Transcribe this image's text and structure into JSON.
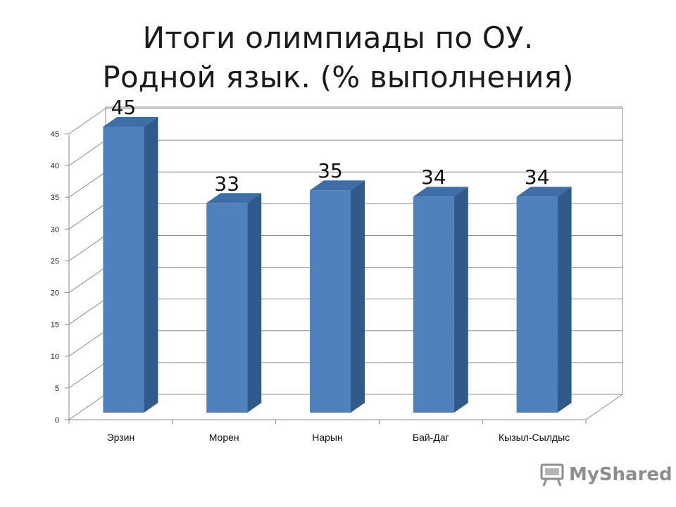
{
  "title": {
    "line1": "Итоги олимпиады по ОУ.",
    "line2": "Родной язык. (% выполнения)"
  },
  "watermark": {
    "text": "MyShared",
    "icon": "presentation-board-icon"
  },
  "colors": {
    "bar_front": "#4F81BD",
    "bar_side": "#2F5A8A",
    "bar_top": "#3E6DA8",
    "grid": "#8c8c8c",
    "watermark": "#8e8e8e"
  },
  "chart_data": {
    "type": "bar",
    "style": "3d-column",
    "categories": [
      "Эрзин",
      "Морен",
      "Нарын",
      "Бай-Даг",
      "Кызыл-Сылдыс"
    ],
    "values": [
      45,
      33,
      35,
      34,
      34
    ],
    "data_labels": [
      "45",
      "33",
      "35",
      "34",
      "34"
    ],
    "y_ticks": [
      0,
      5,
      10,
      15,
      20,
      25,
      30,
      35,
      40,
      45
    ],
    "ylim": [
      0,
      45
    ],
    "grid": true,
    "legend": "none"
  }
}
